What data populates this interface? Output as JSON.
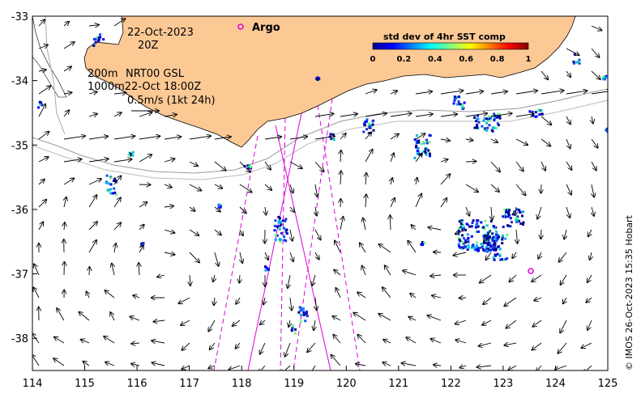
{
  "map": {
    "x_ticks": [
      "114",
      "115",
      "116",
      "117",
      "118",
      "119",
      "120",
      "121",
      "122",
      "123",
      "124",
      "125"
    ],
    "y_ticks": [
      "-33",
      "-34",
      "-35",
      "-36",
      "-37",
      "-38"
    ],
    "xlim": [
      114,
      125
    ],
    "ylim": [
      -38.5,
      -33
    ],
    "land_color": "#fcc995",
    "swath_color": "#dd00dd",
    "argo_color": "#dd00dd"
  },
  "annotations": {
    "date": "22-Oct-2023",
    "time": "20Z",
    "depth_200": "200m",
    "product": "NRT00 GSL",
    "depth_1000": "1000m22-Oct 18:00Z",
    "scale": "0.5m/s (1kt 24h)"
  },
  "argo": {
    "label": "Argo",
    "floats": [
      {
        "lon": 118.0,
        "lat": -33.17
      },
      {
        "lon": 123.5,
        "lat": -36.97
      }
    ]
  },
  "colorbar": {
    "title": "std dev of 4hr SST comp",
    "ticks": [
      "0",
      "0.2",
      "0.4",
      "0.6",
      "0.8",
      "1"
    ],
    "range": [
      0,
      1
    ]
  },
  "credit": "© IMOS 26-Oct-2023 15:35 Hobart"
}
